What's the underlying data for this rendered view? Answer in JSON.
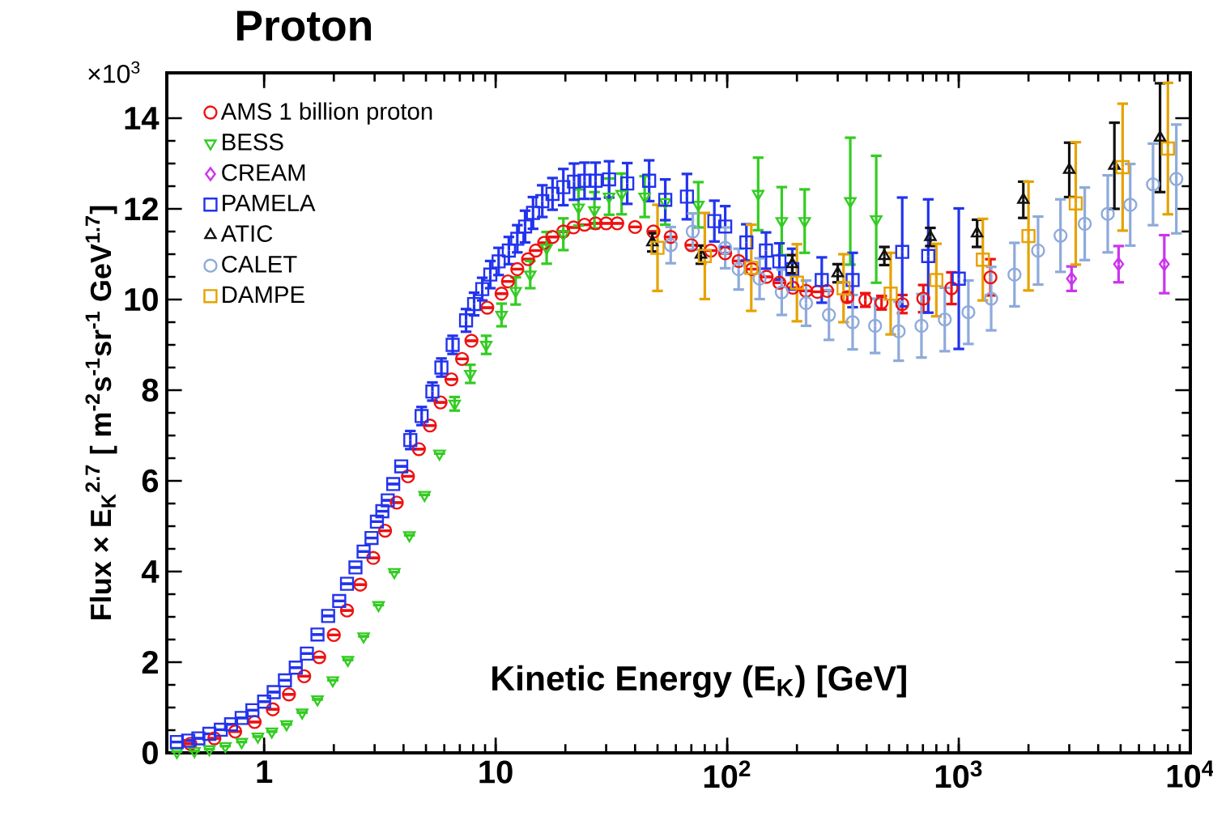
{
  "chart_data": {
    "type": "scatter",
    "title": "Proton",
    "xlabel": "Kinetic Energy (E$_{K}$)  [GeV]",
    "ylabel": "Flux × E$_{K}$$^{2.7}$ [ m$^{-2}$s$^{-1}$sr$^{-1}$ GeV$^{1.7}$]",
    "annotations": [
      "×10$^{3}$"
    ],
    "log": "x",
    "legend": "top left",
    "xlim": [
      0.38,
      10000
    ],
    "ylim": [
      0,
      15
    ],
    "xticks": [
      1,
      10,
      {
        "value": 100,
        "label": "10$^{2}$"
      },
      {
        "value": 1000,
        "label": "10$^{3}$"
      },
      {
        "value": 10000,
        "label": "10$^{4}$"
      }
    ],
    "yticks": [
      0,
      2,
      4,
      6,
      8,
      10,
      12,
      14
    ],
    "series": [
      {
        "name": "AMS 1 billion proton",
        "color": "#ee1111",
        "marker": "circle",
        "x": [
          0.48,
          0.61,
          0.75,
          0.91,
          1.09,
          1.28,
          1.49,
          1.73,
          2.0,
          2.28,
          2.6,
          2.96,
          3.33,
          3.74,
          4.18,
          4.66,
          5.2,
          5.78,
          6.44,
          7.16,
          7.86,
          9.2,
          10.6,
          11.3,
          12.4,
          13.8,
          14.9,
          16.2,
          17.6,
          19.6,
          21.7,
          24.2,
          27,
          30,
          33.5,
          40,
          48,
          57,
          70,
          85,
          98,
          112,
          128,
          148,
          168,
          192,
          219,
          245,
          270,
          330,
          395,
          464,
          570,
          703,
          930,
          1370
        ],
        "values": [
          0.2,
          0.32,
          0.47,
          0.68,
          0.96,
          1.29,
          1.69,
          2.11,
          2.6,
          3.14,
          3.71,
          4.3,
          4.9,
          5.52,
          6.1,
          6.7,
          7.22,
          7.73,
          8.24,
          8.69,
          9.09,
          9.82,
          10.13,
          10.4,
          10.67,
          10.89,
          11.08,
          11.25,
          11.38,
          11.5,
          11.59,
          11.65,
          11.68,
          11.68,
          11.68,
          11.6,
          11.5,
          11.38,
          11.2,
          11.08,
          11.02,
          10.85,
          10.67,
          10.5,
          10.37,
          10.26,
          10.19,
          10.17,
          10.19,
          10.05,
          9.99,
          9.93,
          9.9,
          10.02,
          10.25,
          10.49
        ],
        "errors": [
          null,
          null,
          null,
          null,
          null,
          null,
          null,
          null,
          null,
          null,
          null,
          null,
          null,
          null,
          null,
          null,
          null,
          null,
          null,
          null,
          null,
          null,
          null,
          null,
          null,
          null,
          null,
          null,
          null,
          null,
          null,
          null,
          null,
          null,
          null,
          null,
          null,
          null,
          null,
          null,
          null,
          null,
          null,
          null,
          null,
          null,
          null,
          null,
          null,
          0.1,
          0.15,
          0.15,
          0.2,
          0.3,
          0.35,
          0.4
        ]
      },
      {
        "name": "BESS",
        "color": "#33cc22",
        "marker": "triangle-down",
        "x": [
          0.42,
          0.5,
          0.58,
          0.68,
          0.8,
          0.94,
          1.08,
          1.25,
          1.46,
          1.7,
          1.98,
          2.3,
          2.69,
          3.12,
          3.65,
          4.24,
          4.93,
          5.72,
          6.65,
          7.77,
          9.1,
          10.6,
          12.2,
          14.1,
          16.6,
          19.6,
          22.8,
          26.7,
          30.9,
          35,
          44,
          54,
          75,
          136,
          172,
          216,
          340,
          440
        ],
        "values": [
          0.02,
          0.04,
          0.08,
          0.15,
          0.24,
          0.36,
          0.47,
          0.63,
          0.89,
          1.18,
          1.6,
          2.05,
          2.57,
          3.26,
          3.99,
          4.8,
          5.69,
          6.6,
          7.7,
          8.36,
          9.0,
          9.66,
          10.19,
          10.55,
          11.14,
          11.44,
          12.03,
          11.97,
          12.27,
          12.33,
          12.27,
          12.15,
          12.09,
          12.33,
          11.73,
          11.73,
          12.17,
          11.77
        ],
        "errors": [
          null,
          null,
          null,
          null,
          null,
          null,
          null,
          null,
          null,
          null,
          null,
          null,
          null,
          null,
          null,
          null,
          null,
          null,
          0.15,
          0.2,
          0.2,
          0.25,
          0.3,
          0.3,
          0.35,
          0.35,
          0.4,
          0.4,
          0.4,
          0.45,
          0.45,
          0.5,
          0.5,
          0.8,
          0.75,
          0.7,
          1.4,
          1.4
        ]
      },
      {
        "name": "CREAM",
        "color": "#cc33ee",
        "marker": "diamond",
        "x": [
          3070,
          4900,
          7720
        ],
        "values": [
          10.46,
          10.78,
          10.78
        ],
        "errors": [
          0.27,
          0.4,
          0.64
        ]
      },
      {
        "name": "PAMELA",
        "color": "#2233ee",
        "marker": "square",
        "x": [
          0.42,
          0.47,
          0.52,
          0.58,
          0.65,
          0.72,
          0.8,
          0.89,
          1.0,
          1.1,
          1.23,
          1.37,
          1.53,
          1.7,
          1.89,
          2.11,
          2.28,
          2.48,
          2.69,
          2.91,
          3.07,
          3.24,
          3.42,
          3.61,
          3.91,
          4.28,
          4.79,
          5.33,
          5.83,
          6.52,
          7.45,
          8.07,
          8.75,
          9.48,
          10.3,
          11.4,
          12.4,
          13.4,
          14.5,
          15.9,
          17.6,
          19.6,
          21.8,
          24.2,
          27,
          30.9,
          37,
          46,
          54,
          67,
          88,
          98,
          121,
          147,
          168,
          191,
          256,
          348,
          570,
          738,
          1000
        ],
        "values": [
          0.24,
          0.27,
          0.32,
          0.42,
          0.51,
          0.63,
          0.77,
          0.94,
          1.13,
          1.34,
          1.6,
          1.88,
          2.19,
          2.61,
          3.02,
          3.35,
          3.73,
          4.09,
          4.44,
          4.74,
          5.1,
          5.33,
          5.57,
          5.93,
          6.32,
          6.9,
          7.43,
          7.97,
          8.5,
          9.0,
          9.54,
          9.9,
          10.23,
          10.55,
          10.84,
          11.08,
          11.34,
          11.61,
          11.91,
          12.17,
          12.33,
          12.48,
          12.6,
          12.62,
          12.62,
          12.65,
          12.56,
          12.62,
          12.2,
          12.27,
          11.73,
          11.61,
          11.26,
          11.08,
          10.84,
          10.67,
          10.43,
          10.43,
          11.05,
          10.96,
          10.46
        ],
        "errors": [
          null,
          null,
          null,
          null,
          null,
          null,
          null,
          null,
          null,
          null,
          null,
          null,
          null,
          null,
          null,
          null,
          null,
          null,
          null,
          null,
          null,
          null,
          null,
          null,
          null,
          0.2,
          0.2,
          0.2,
          0.2,
          0.2,
          0.25,
          0.25,
          0.25,
          0.3,
          0.3,
          0.3,
          0.3,
          0.35,
          0.35,
          0.35,
          0.35,
          0.4,
          0.4,
          0.4,
          0.4,
          0.4,
          0.45,
          0.45,
          0.45,
          0.5,
          0.45,
          0.45,
          0.4,
          0.4,
          0.4,
          0.45,
          0.5,
          0.6,
          1.2,
          1.25,
          1.55
        ]
      },
      {
        "name": "ATIC",
        "color": "#111111",
        "marker": "triangle",
        "x": [
          47.5,
          77,
          191,
          300,
          477,
          754,
          1200,
          1900,
          3000,
          4700,
          7400
        ],
        "values": [
          11.26,
          10.99,
          10.78,
          10.58,
          10.96,
          11.38,
          11.46,
          12.2,
          12.86,
          12.95,
          13.57
        ],
        "errors": [
          0.2,
          0.2,
          0.2,
          0.2,
          0.2,
          0.2,
          0.3,
          0.4,
          0.6,
          0.95,
          1.2
        ]
      },
      {
        "name": "CALET",
        "color": "#8eaadb",
        "marker": "circle",
        "x": [
          57,
          71,
          98,
          112,
          138,
          172,
          219,
          275,
          348,
          435,
          550,
          690,
          870,
          1100,
          1380,
          1740,
          2200,
          2750,
          3500,
          4400,
          5500,
          6900,
          8700
        ],
        "values": [
          11.2,
          11.5,
          11.14,
          10.67,
          10.46,
          10.16,
          9.92,
          9.66,
          9.5,
          9.42,
          9.3,
          9.42,
          9.56,
          9.72,
          10.02,
          10.55,
          11.08,
          11.41,
          11.67,
          11.89,
          12.09,
          12.54,
          12.66
        ],
        "errors": [
          0.4,
          0.4,
          0.45,
          0.45,
          0.45,
          0.5,
          0.5,
          0.55,
          0.6,
          0.6,
          0.65,
          0.7,
          0.7,
          0.7,
          0.7,
          0.7,
          0.75,
          0.8,
          0.8,
          0.85,
          0.9,
          0.9,
          1.2
        ]
      },
      {
        "name": "DAMPE",
        "color": "#e6a200",
        "marker": "square",
        "x": [
          50,
          80,
          127,
          200,
          318,
          508,
          800,
          1270,
          2000,
          3200,
          5100,
          8000
        ],
        "values": [
          11.14,
          10.96,
          10.7,
          10.37,
          10.25,
          10.13,
          10.43,
          10.88,
          11.4,
          12.12,
          12.92,
          13.33
        ],
        "errors": [
          0.95,
          0.95,
          0.95,
          0.85,
          0.75,
          0.9,
          0.8,
          0.9,
          1.2,
          1.35,
          1.4,
          1.45
        ]
      }
    ]
  }
}
